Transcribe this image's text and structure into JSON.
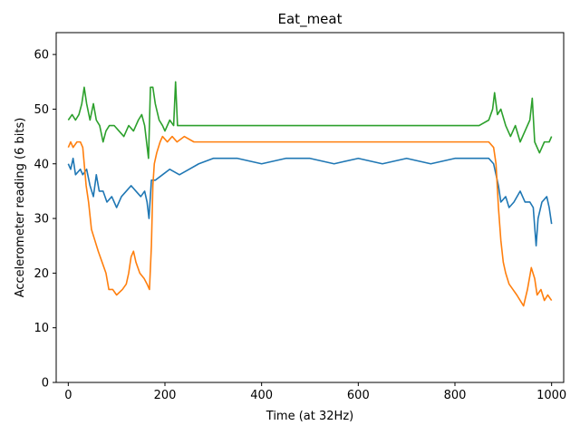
{
  "chart_data": {
    "type": "line",
    "title": "Eat_meat",
    "xlabel": "Time (at 32Hz)",
    "ylabel": "Accelerometer reading (6 bits)",
    "xlim": [
      -25,
      1025
    ],
    "ylim": [
      0,
      64
    ],
    "xticks": [
      0,
      200,
      400,
      600,
      800,
      1000
    ],
    "yticks": [
      0,
      10,
      20,
      30,
      40,
      50,
      60
    ],
    "grid": false,
    "legend": "none",
    "series": [
      {
        "color": "#1f77b4",
        "points": [
          [
            0,
            40
          ],
          [
            5,
            39
          ],
          [
            10,
            41
          ],
          [
            15,
            38
          ],
          [
            25,
            39
          ],
          [
            30,
            38
          ],
          [
            38,
            39
          ],
          [
            45,
            36
          ],
          [
            52,
            34
          ],
          [
            58,
            38
          ],
          [
            64,
            35
          ],
          [
            72,
            35
          ],
          [
            80,
            33
          ],
          [
            90,
            34
          ],
          [
            100,
            32
          ],
          [
            110,
            34
          ],
          [
            120,
            35
          ],
          [
            130,
            36
          ],
          [
            140,
            35
          ],
          [
            150,
            34
          ],
          [
            158,
            35
          ],
          [
            163,
            33
          ],
          [
            167,
            30
          ],
          [
            172,
            37
          ],
          [
            180,
            37
          ],
          [
            195,
            38
          ],
          [
            210,
            39
          ],
          [
            230,
            38
          ],
          [
            250,
            39
          ],
          [
            270,
            40
          ],
          [
            300,
            41
          ],
          [
            350,
            41
          ],
          [
            400,
            40
          ],
          [
            450,
            41
          ],
          [
            500,
            41
          ],
          [
            550,
            40
          ],
          [
            600,
            41
          ],
          [
            650,
            40
          ],
          [
            700,
            41
          ],
          [
            750,
            40
          ],
          [
            800,
            41
          ],
          [
            850,
            41
          ],
          [
            870,
            41
          ],
          [
            880,
            40
          ],
          [
            890,
            36
          ],
          [
            895,
            33
          ],
          [
            905,
            34
          ],
          [
            912,
            32
          ],
          [
            922,
            33
          ],
          [
            935,
            35
          ],
          [
            945,
            33
          ],
          [
            955,
            33
          ],
          [
            962,
            32
          ],
          [
            968,
            25
          ],
          [
            972,
            30
          ],
          [
            980,
            33
          ],
          [
            990,
            34
          ],
          [
            995,
            32
          ],
          [
            1000,
            29
          ]
        ]
      },
      {
        "color": "#ff7f0e",
        "points": [
          [
            0,
            43
          ],
          [
            5,
            44
          ],
          [
            10,
            43
          ],
          [
            18,
            44
          ],
          [
            25,
            44
          ],
          [
            30,
            43
          ],
          [
            33,
            40
          ],
          [
            37,
            36
          ],
          [
            42,
            33
          ],
          [
            48,
            28
          ],
          [
            55,
            26
          ],
          [
            62,
            24
          ],
          [
            70,
            22
          ],
          [
            78,
            20
          ],
          [
            84,
            17
          ],
          [
            92,
            17
          ],
          [
            100,
            16
          ],
          [
            112,
            17
          ],
          [
            120,
            18
          ],
          [
            125,
            20
          ],
          [
            130,
            23
          ],
          [
            135,
            24
          ],
          [
            140,
            22
          ],
          [
            148,
            20
          ],
          [
            157,
            19
          ],
          [
            163,
            18
          ],
          [
            168,
            17
          ],
          [
            172,
            25
          ],
          [
            175,
            36
          ],
          [
            178,
            40
          ],
          [
            183,
            42
          ],
          [
            190,
            44
          ],
          [
            195,
            45
          ],
          [
            205,
            44
          ],
          [
            215,
            45
          ],
          [
            225,
            44
          ],
          [
            240,
            45
          ],
          [
            260,
            44
          ],
          [
            300,
            44
          ],
          [
            350,
            44
          ],
          [
            400,
            44
          ],
          [
            450,
            44
          ],
          [
            500,
            44
          ],
          [
            550,
            44
          ],
          [
            600,
            44
          ],
          [
            650,
            44
          ],
          [
            700,
            44
          ],
          [
            750,
            44
          ],
          [
            800,
            44
          ],
          [
            850,
            44
          ],
          [
            870,
            44
          ],
          [
            880,
            43
          ],
          [
            885,
            40
          ],
          [
            890,
            32
          ],
          [
            895,
            26
          ],
          [
            900,
            22
          ],
          [
            905,
            20
          ],
          [
            912,
            18
          ],
          [
            920,
            17
          ],
          [
            928,
            16
          ],
          [
            935,
            15
          ],
          [
            942,
            14
          ],
          [
            950,
            17
          ],
          [
            958,
            21
          ],
          [
            965,
            19
          ],
          [
            970,
            16
          ],
          [
            978,
            17
          ],
          [
            985,
            15
          ],
          [
            992,
            16
          ],
          [
            1000,
            15
          ]
        ]
      },
      {
        "color": "#2ca02c",
        "points": [
          [
            0,
            48
          ],
          [
            8,
            49
          ],
          [
            15,
            48
          ],
          [
            22,
            49
          ],
          [
            28,
            51
          ],
          [
            33,
            54
          ],
          [
            38,
            51
          ],
          [
            45,
            48
          ],
          [
            52,
            51
          ],
          [
            58,
            48
          ],
          [
            65,
            47
          ],
          [
            72,
            44
          ],
          [
            78,
            46
          ],
          [
            85,
            47
          ],
          [
            95,
            47
          ],
          [
            105,
            46
          ],
          [
            115,
            45
          ],
          [
            125,
            47
          ],
          [
            135,
            46
          ],
          [
            145,
            48
          ],
          [
            152,
            49
          ],
          [
            158,
            47
          ],
          [
            162,
            44
          ],
          [
            166,
            41
          ],
          [
            170,
            54
          ],
          [
            175,
            54
          ],
          [
            180,
            51
          ],
          [
            188,
            48
          ],
          [
            195,
            47
          ],
          [
            200,
            46
          ],
          [
            210,
            48
          ],
          [
            218,
            47
          ],
          [
            222,
            55
          ],
          [
            226,
            47
          ],
          [
            235,
            47
          ],
          [
            260,
            47
          ],
          [
            300,
            47
          ],
          [
            350,
            47
          ],
          [
            400,
            47
          ],
          [
            450,
            47
          ],
          [
            500,
            47
          ],
          [
            550,
            47
          ],
          [
            600,
            47
          ],
          [
            650,
            47
          ],
          [
            700,
            47
          ],
          [
            750,
            47
          ],
          [
            800,
            47
          ],
          [
            850,
            47
          ],
          [
            870,
            48
          ],
          [
            878,
            50
          ],
          [
            882,
            53
          ],
          [
            888,
            49
          ],
          [
            895,
            50
          ],
          [
            905,
            47
          ],
          [
            915,
            45
          ],
          [
            925,
            47
          ],
          [
            935,
            44
          ],
          [
            945,
            46
          ],
          [
            955,
            48
          ],
          [
            960,
            52
          ],
          [
            965,
            44
          ],
          [
            975,
            42
          ],
          [
            985,
            44
          ],
          [
            995,
            44
          ],
          [
            1000,
            45
          ]
        ]
      }
    ]
  }
}
